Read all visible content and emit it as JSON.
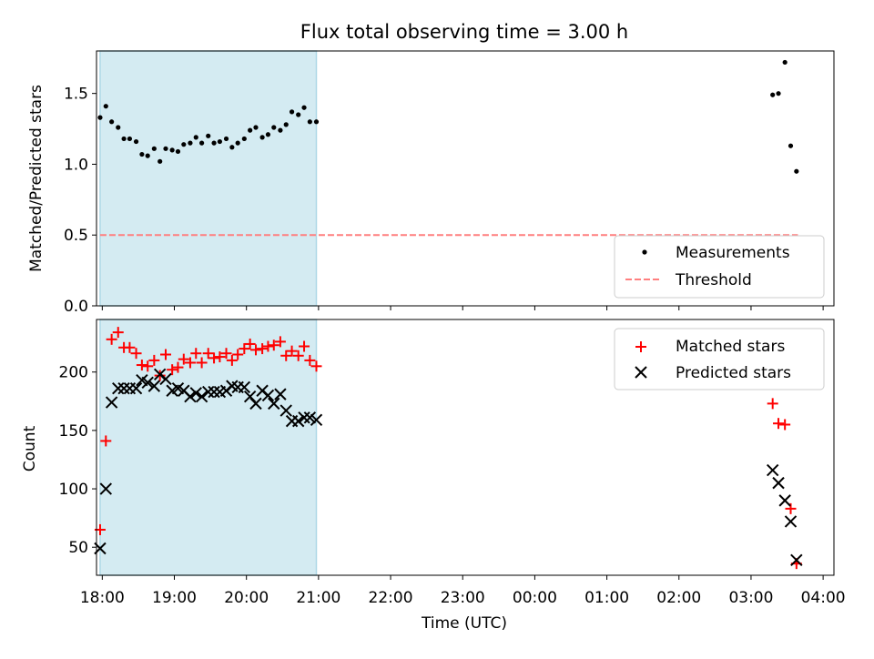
{
  "title": "Flux total observing time = 3.00 h",
  "colors": {
    "shade": "#add8e6",
    "matched": "#ff0000",
    "predicted": "#000000",
    "threshold": "#ff7f7f",
    "measurements": "#000000"
  },
  "chart_data": [
    {
      "type": "scatter",
      "ylabel": "Matched/Predicted stars",
      "xlim": [
        17.92,
        28.15
      ],
      "ylim": [
        0,
        1.8
      ],
      "yticks": [
        0.0,
        0.5,
        1.0,
        1.5
      ],
      "ytick_labels": [
        "0.0",
        "0.5",
        "1.0",
        "1.5"
      ],
      "shaded_interval": [
        17.97,
        20.97
      ],
      "threshold": {
        "name": "Threshold",
        "value": 0.5,
        "x": [
          17.97,
          27.65
        ]
      },
      "legend": {
        "placement": "lower-right"
      },
      "series": [
        {
          "name": "Measurements",
          "marker": "dot",
          "x": [
            17.97,
            18.05,
            18.13,
            18.22,
            18.3,
            18.38,
            18.47,
            18.55,
            18.63,
            18.72,
            18.8,
            18.88,
            18.97,
            19.05,
            19.13,
            19.22,
            19.3,
            19.38,
            19.47,
            19.55,
            19.63,
            19.72,
            19.8,
            19.88,
            19.97,
            20.05,
            20.13,
            20.22,
            20.3,
            20.38,
            20.47,
            20.55,
            20.63,
            20.72,
            20.8,
            20.88,
            20.97,
            27.3,
            27.38,
            27.47,
            27.55,
            27.63
          ],
          "y": [
            1.33,
            1.41,
            1.3,
            1.26,
            1.18,
            1.18,
            1.16,
            1.07,
            1.06,
            1.11,
            1.02,
            1.11,
            1.1,
            1.09,
            1.14,
            1.15,
            1.19,
            1.15,
            1.2,
            1.15,
            1.16,
            1.18,
            1.12,
            1.15,
            1.18,
            1.24,
            1.26,
            1.19,
            1.21,
            1.26,
            1.24,
            1.28,
            1.37,
            1.35,
            1.4,
            1.3,
            1.3,
            1.49,
            1.5,
            1.72,
            1.13,
            0.95
          ]
        }
      ]
    },
    {
      "type": "scatter",
      "xlabel": "Time (UTC)",
      "ylabel": "Count",
      "xlim": [
        17.92,
        28.15
      ],
      "ylim": [
        26,
        245
      ],
      "yticks": [
        50,
        100,
        150,
        200
      ],
      "ytick_labels": [
        "50",
        "100",
        "150",
        "200"
      ],
      "xticks": [
        18,
        19,
        20,
        21,
        22,
        23,
        24,
        25,
        26,
        27,
        28
      ],
      "xtick_labels": [
        "18:00",
        "19:00",
        "20:00",
        "21:00",
        "22:00",
        "23:00",
        "00:00",
        "01:00",
        "02:00",
        "03:00",
        "04:00"
      ],
      "shaded_interval": [
        17.97,
        20.97
      ],
      "legend": {
        "placement": "upper-right"
      },
      "series": [
        {
          "name": "Matched stars",
          "marker": "plus",
          "x": [
            17.97,
            18.05,
            18.13,
            18.22,
            18.3,
            18.38,
            18.47,
            18.55,
            18.63,
            18.72,
            18.8,
            18.88,
            18.97,
            19.05,
            19.13,
            19.22,
            19.3,
            19.38,
            19.47,
            19.55,
            19.63,
            19.72,
            19.8,
            19.88,
            19.97,
            20.05,
            20.13,
            20.22,
            20.3,
            20.38,
            20.47,
            20.55,
            20.63,
            20.72,
            20.8,
            20.88,
            20.97,
            27.3,
            27.38,
            27.47,
            27.55,
            27.63
          ],
          "y": [
            65,
            141,
            228,
            234,
            221,
            221,
            216,
            206,
            205,
            210,
            197,
            215,
            202,
            204,
            211,
            208,
            216,
            208,
            216,
            212,
            213,
            216,
            210,
            215,
            220,
            224,
            219,
            220,
            222,
            223,
            226,
            214,
            218,
            214,
            222,
            210,
            205,
            173,
            156,
            155,
            83,
            36
          ]
        },
        {
          "name": "Predicted stars",
          "marker": "x",
          "x": [
            17.97,
            18.05,
            18.13,
            18.22,
            18.3,
            18.38,
            18.47,
            18.55,
            18.63,
            18.72,
            18.8,
            18.88,
            18.97,
            19.05,
            19.13,
            19.22,
            19.3,
            19.38,
            19.47,
            19.55,
            19.63,
            19.72,
            19.8,
            19.88,
            19.97,
            20.05,
            20.13,
            20.22,
            20.3,
            20.38,
            20.47,
            20.55,
            20.63,
            20.72,
            20.8,
            20.88,
            20.97,
            27.3,
            27.38,
            27.47,
            27.55,
            27.63
          ],
          "y": [
            49,
            100,
            174,
            186,
            186,
            186,
            186,
            193,
            191,
            188,
            198,
            194,
            184,
            186,
            184,
            179,
            182,
            179,
            183,
            183,
            183,
            184,
            188,
            187,
            187,
            179,
            173,
            184,
            180,
            173,
            181,
            167,
            158,
            158,
            161,
            161,
            159,
            116,
            105,
            90,
            72,
            39
          ]
        }
      ]
    }
  ]
}
